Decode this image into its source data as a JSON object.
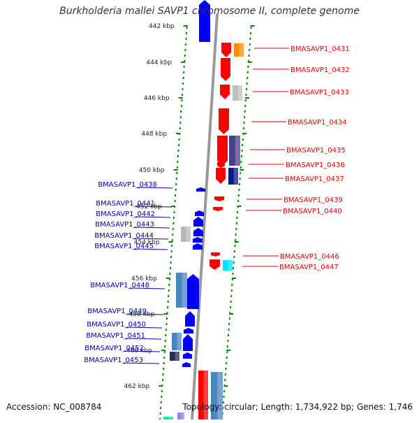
{
  "title": "Burkholderia mallei SAVP1 chromosome II, complete genome",
  "accession": "Accession: NC_008784",
  "topology": "Topology: circular; Length: 1,734,922 bp; Genes: 1,746",
  "scale_labels": [
    "442 kbp",
    "444 kbp",
    "446 kbp",
    "448 kbp",
    "450 kbp",
    "452 kbp",
    "454 kbp",
    "456 kbp",
    "458 kbp",
    "460 kbp",
    "462 kbp"
  ],
  "colors": {
    "forward_label": "#dd0000",
    "reverse_label": "#0000aa",
    "forward_gene": "#ff0000",
    "reverse_gene": "#0000ff",
    "backbone": "#999999",
    "dots": "#008800"
  },
  "forward_genes": [
    "BMASAVP1_0431",
    "BMASAVP1_0432",
    "BMASAVP1_0433",
    "BMASAVP1_0434",
    "BMASAVP1_0435",
    "BMASAVP1_0436",
    "BMASAVP1_0437",
    "BMASAVP1_0439",
    "BMASAVP1_0440",
    "BMASAVP1_0446",
    "BMASAVP1_0447"
  ],
  "reverse_genes": [
    "BMASAVP1_0438",
    "BMASAVP1_0441",
    "BMASAVP1_0442",
    "BMASAVP1_0443",
    "BMASAVP1_0444",
    "BMASAVP1_0445",
    "BMASAVP1_0448",
    "BMASAVP1_0449",
    "BMASAVP1_0450",
    "BMASAVP1_0451",
    "BMASAVP1_0452",
    "BMASAVP1_0453"
  ]
}
